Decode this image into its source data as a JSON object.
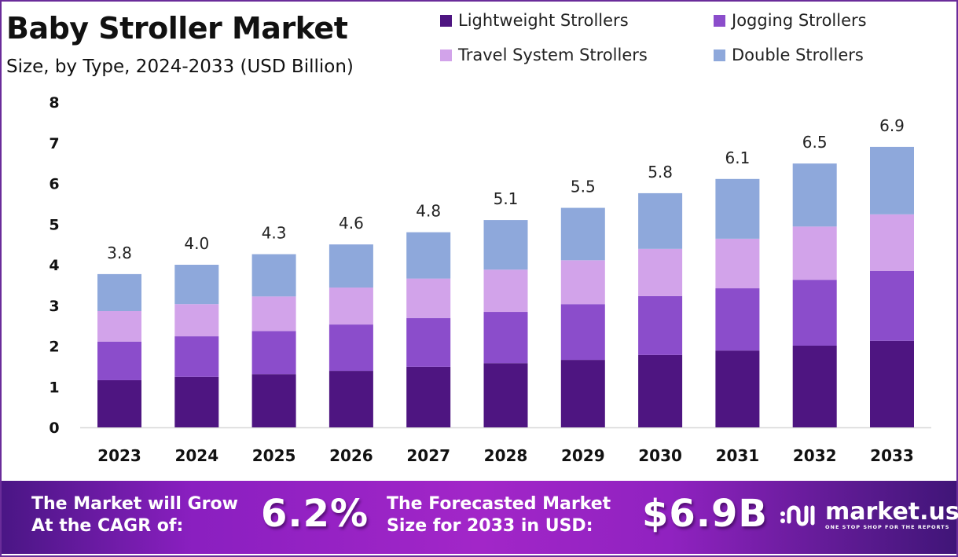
{
  "header": {
    "title": "Baby Stroller Market",
    "subtitle": "Size, by Type, 2024-2033 (USD Billion)"
  },
  "colors": {
    "lightweight": "#4e1581",
    "jogging": "#8b4dcb",
    "travel": "#d2a3ea",
    "double": "#8ea8db",
    "brand": "#6a2c9a"
  },
  "chart_data": {
    "type": "bar",
    "stacked": true,
    "title": "Baby Stroller Market",
    "subtitle": "Size, by Type, 2024-2033 (USD Billion)",
    "xlabel": "",
    "ylabel": "",
    "ylim": [
      0,
      8
    ],
    "yticks": [
      "0",
      "1",
      "2",
      "3",
      "4",
      "5",
      "6",
      "7",
      "8"
    ],
    "grid": false,
    "legend_position": "top-right",
    "categories": [
      "2023",
      "2024",
      "2025",
      "2026",
      "2027",
      "2028",
      "2029",
      "2030",
      "2031",
      "2032",
      "2033"
    ],
    "series": [
      {
        "name": "Lightweight Strollers",
        "color": "#4e1581",
        "values": [
          1.16,
          1.24,
          1.31,
          1.39,
          1.49,
          1.58,
          1.66,
          1.78,
          1.89,
          2.01,
          2.13
        ]
      },
      {
        "name": "Jogging Strollers",
        "color": "#8b4dcb",
        "values": [
          0.95,
          1.0,
          1.06,
          1.14,
          1.2,
          1.26,
          1.37,
          1.45,
          1.53,
          1.62,
          1.72
        ]
      },
      {
        "name": "Travel System Strollers",
        "color": "#d2a3ea",
        "values": [
          0.75,
          0.79,
          0.85,
          0.91,
          0.97,
          1.04,
          1.08,
          1.16,
          1.22,
          1.31,
          1.39
        ]
      },
      {
        "name": "Double Strollers",
        "color": "#8ea8db",
        "values": [
          0.91,
          0.97,
          1.04,
          1.06,
          1.14,
          1.22,
          1.29,
          1.37,
          1.47,
          1.55,
          1.66
        ]
      }
    ],
    "totals": [
      3.8,
      4.0,
      4.3,
      4.6,
      4.8,
      5.1,
      5.5,
      5.8,
      6.1,
      6.5,
      6.9
    ],
    "total_labels": [
      "3.8",
      "4.0",
      "4.3",
      "4.6",
      "4.8",
      "5.1",
      "5.5",
      "5.8",
      "6.1",
      "6.5",
      "6.9"
    ]
  },
  "banner": {
    "cagr_text_line1": "The Market will Grow",
    "cagr_text_line2": "At the CAGR of:",
    "cagr_value": "6.2%",
    "forecast_text_line1": "The Forecasted Market",
    "forecast_text_line2": "Size for 2033 in USD:",
    "forecast_value": "$6.9B",
    "logo_word": "market.us",
    "logo_tagline": "ONE STOP SHOP FOR THE REPORTS"
  }
}
